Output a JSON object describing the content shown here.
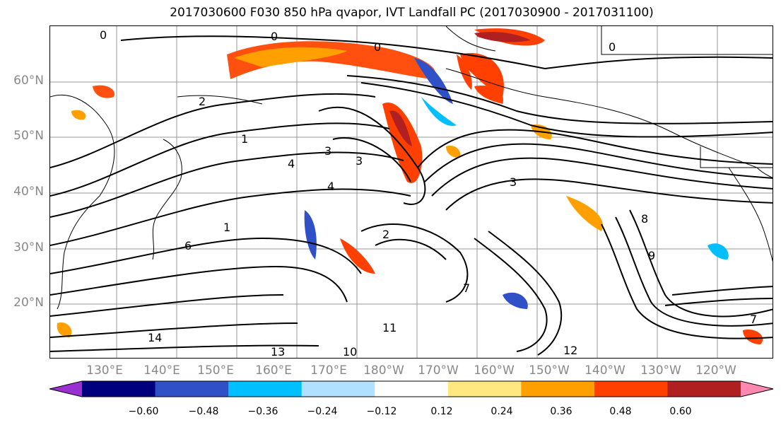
{
  "title": "2017030600 F030 850 hPa qvapor, IVT Landfall PC (2017030900 - 2017031100)",
  "lat_labels": [
    "60°N",
    "50°N",
    "40°N",
    "30°N",
    "20°N"
  ],
  "lon_labels": [
    "130°E",
    "140°E",
    "150°E",
    "160°E",
    "170°E",
    "180°W",
    "170°W",
    "160°W",
    "150°W",
    "140°W",
    "130°W",
    "120°W"
  ],
  "colorbar": {
    "colors": [
      "#9b30d0",
      "#00007f",
      "#3050c8",
      "#00bfff",
      "#b0e2ff",
      "#ffffff",
      "#ffe880",
      "#ffa000",
      "#ff4000",
      "#b02020",
      "#ff88b0"
    ],
    "tick_labels": [
      "−0.60",
      "−0.48",
      "−0.36",
      "−0.24",
      "−0.12",
      "0.12",
      "0.24",
      "0.36",
      "0.48",
      "0.60"
    ]
  },
  "contour_labels": [
    "0",
    "0",
    "0",
    "0",
    "1",
    "1",
    "2",
    "2",
    "3",
    "3",
    "3",
    "4",
    "4",
    "6",
    "7",
    "7",
    "8",
    "9",
    "10",
    "11",
    "12",
    "13",
    "14"
  ]
}
